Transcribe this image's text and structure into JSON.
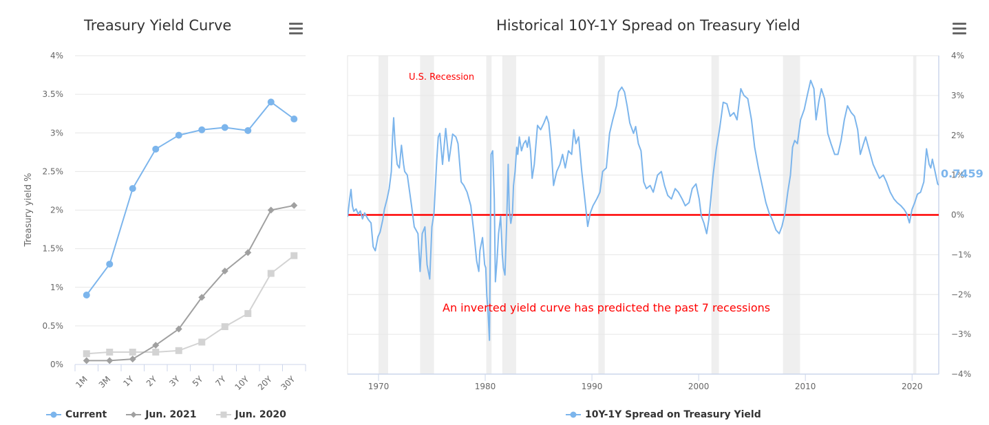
{
  "left_chart": {
    "title": "Treasury Yield Curve",
    "menu_icon": "hamburger-menu-icon",
    "legend": [
      "Current",
      "Jun. 2021",
      "Jun. 2020"
    ]
  },
  "right_chart": {
    "title": "Historical 10Y-1Y Spread on Treasury Yield",
    "menu_icon": "hamburger-menu-icon",
    "legend": [
      "10Y-1Y Spread on Treasury Yield"
    ],
    "recession_label": "U.S. Recession",
    "annotation": "An inverted yield curve has predicted the past 7 recessions",
    "last_value_label": "0.7459"
  },
  "colors": {
    "current": "#7cb5ec",
    "jun2021": "#a0a0a0",
    "jun2020": "#d3d3d3",
    "zero_line": "#ff0000",
    "recession_band": "#efefef",
    "annotation": "#ff0000"
  },
  "chart_data": [
    {
      "type": "line",
      "title": "Treasury Yield Curve",
      "xlabel": "",
      "ylabel": "Treasury yield %",
      "categories": [
        "1M",
        "3M",
        "1Y",
        "2Y",
        "3Y",
        "5Y",
        "7Y",
        "10Y",
        "20Y",
        "30Y"
      ],
      "ylim": [
        0,
        4
      ],
      "yticks": [
        0,
        0.5,
        1,
        1.5,
        2,
        2.5,
        3,
        3.5,
        4
      ],
      "ytick_labels": [
        "0%",
        "0.5%",
        "1%",
        "1.5%",
        "2%",
        "2.5%",
        "3%",
        "3.5%",
        "4%"
      ],
      "grid": true,
      "legend_position": "bottom",
      "series": [
        {
          "name": "Current",
          "marker": "circle",
          "values": [
            0.9,
            1.3,
            2.28,
            2.79,
            2.97,
            3.04,
            3.07,
            3.03,
            3.4,
            3.18
          ]
        },
        {
          "name": "Jun. 2021",
          "marker": "diamond",
          "values": [
            0.05,
            0.05,
            0.07,
            0.25,
            0.46,
            0.87,
            1.21,
            1.45,
            2.0,
            2.06
          ]
        },
        {
          "name": "Jun. 2020",
          "marker": "square",
          "values": [
            0.14,
            0.16,
            0.16,
            0.16,
            0.18,
            0.29,
            0.49,
            0.66,
            1.18,
            1.41
          ]
        }
      ]
    },
    {
      "type": "line",
      "title": "Historical 10Y-1Y Spread on Treasury Yield",
      "xlabel": "",
      "ylabel": "",
      "xlim": [
        1967.1,
        2022.5
      ],
      "xticks": [
        1970,
        1980,
        1990,
        2000,
        2010,
        2020
      ],
      "xtick_labels": [
        "1970",
        "1980",
        "1990",
        "2000",
        "2010",
        "2020"
      ],
      "ylim": [
        -4,
        4
      ],
      "yticks": [
        -4,
        -3,
        -2,
        -1,
        0,
        1,
        2,
        3,
        4
      ],
      "ytick_labels": [
        "-4%",
        "-3%",
        "-2%",
        "-1%",
        "0%",
        "1%",
        "2%",
        "3%",
        "4%"
      ],
      "yaxis_side": "right",
      "grid": true,
      "legend_position": "bottom",
      "reference_line": {
        "y": 0,
        "color": "#ff0000"
      },
      "recessions": [
        [
          1970.0,
          1970.9
        ],
        [
          1973.9,
          1975.2
        ],
        [
          1980.1,
          1980.6
        ],
        [
          1981.6,
          1982.9
        ],
        [
          1990.6,
          1991.2
        ],
        [
          2001.2,
          2001.9
        ],
        [
          2007.9,
          2009.5
        ],
        [
          2020.1,
          2020.4
        ]
      ],
      "annotations": [
        "U.S. Recession",
        "An inverted yield curve has predicted the past 7 recessions"
      ],
      "last_value": 0.7459,
      "series": [
        {
          "name": "10Y-1Y Spread on Treasury Yield",
          "points": [
            [
              1967.1,
              -0.05
            ],
            [
              1967.3,
              0.4
            ],
            [
              1967.42,
              0.64
            ],
            [
              1967.55,
              0.23
            ],
            [
              1967.68,
              0.09
            ],
            [
              1967.9,
              0.15
            ],
            [
              1968.1,
              0.02
            ],
            [
              1968.3,
              0.1
            ],
            [
              1968.5,
              -0.1
            ],
            [
              1968.7,
              0.05
            ],
            [
              1968.9,
              -0.05
            ],
            [
              1969.05,
              -0.12
            ],
            [
              1969.3,
              -0.2
            ],
            [
              1969.5,
              -0.8
            ],
            [
              1969.7,
              -0.9
            ],
            [
              1969.95,
              -0.55
            ],
            [
              1970.15,
              -0.43
            ],
            [
              1970.4,
              -0.12
            ],
            [
              1970.55,
              0.14
            ],
            [
              1970.8,
              0.4
            ],
            [
              1971.0,
              0.66
            ],
            [
              1971.2,
              1.09
            ],
            [
              1971.32,
              1.97
            ],
            [
              1971.42,
              2.44
            ],
            [
              1971.55,
              1.79
            ],
            [
              1971.75,
              1.27
            ],
            [
              1971.95,
              1.18
            ],
            [
              1972.15,
              1.75
            ],
            [
              1972.35,
              1.27
            ],
            [
              1972.45,
              1.09
            ],
            [
              1972.7,
              1.0
            ],
            [
              1973.1,
              0.23
            ],
            [
              1973.35,
              -0.3
            ],
            [
              1973.7,
              -0.47
            ],
            [
              1973.9,
              -1.42
            ],
            [
              1974.1,
              -0.47
            ],
            [
              1974.35,
              -0.3
            ],
            [
              1974.55,
              -1.25
            ],
            [
              1974.8,
              -1.61
            ],
            [
              1975.0,
              -0.3
            ],
            [
              1975.2,
              0.05
            ],
            [
              1975.45,
              1.35
            ],
            [
              1975.6,
              1.96
            ],
            [
              1975.75,
              2.05
            ],
            [
              1976.0,
              1.27
            ],
            [
              1976.3,
              2.17
            ],
            [
              1976.6,
              1.35
            ],
            [
              1976.95,
              2.03
            ],
            [
              1977.25,
              1.96
            ],
            [
              1977.45,
              1.79
            ],
            [
              1977.75,
              0.83
            ],
            [
              1978.0,
              0.74
            ],
            [
              1978.3,
              0.57
            ],
            [
              1978.65,
              0.23
            ],
            [
              1978.95,
              -0.47
            ],
            [
              1979.2,
              -1.16
            ],
            [
              1979.4,
              -1.42
            ],
            [
              1979.5,
              -0.9
            ],
            [
              1979.75,
              -0.57
            ],
            [
              1979.95,
              -1.25
            ],
            [
              1980.05,
              -1.33
            ],
            [
              1980.15,
              -2.03
            ],
            [
              1980.25,
              -2.38
            ],
            [
              1980.4,
              -3.15
            ],
            [
              1980.55,
              1.52
            ],
            [
              1980.7,
              1.61
            ],
            [
              1980.85,
              0.4
            ],
            [
              1980.95,
              -1.68
            ],
            [
              1981.1,
              -1.16
            ],
            [
              1981.25,
              -0.47
            ],
            [
              1981.45,
              -0.03
            ],
            [
              1981.6,
              -0.99
            ],
            [
              1981.7,
              -1.33
            ],
            [
              1981.85,
              -1.51
            ],
            [
              1982.0,
              -0.3
            ],
            [
              1982.15,
              1.27
            ],
            [
              1982.25,
              0.14
            ],
            [
              1982.4,
              -0.21
            ],
            [
              1982.55,
              0.05
            ],
            [
              1982.65,
              0.74
            ],
            [
              1982.8,
              1.09
            ],
            [
              1982.95,
              1.7
            ],
            [
              1983.05,
              1.52
            ],
            [
              1983.2,
              1.96
            ],
            [
              1983.4,
              1.61
            ],
            [
              1983.6,
              1.79
            ],
            [
              1983.8,
              1.87
            ],
            [
              1983.95,
              1.7
            ],
            [
              1984.1,
              1.96
            ],
            [
              1984.25,
              1.61
            ],
            [
              1984.4,
              0.92
            ],
            [
              1984.6,
              1.27
            ],
            [
              1984.9,
              2.25
            ],
            [
              1985.2,
              2.14
            ],
            [
              1985.5,
              2.31
            ],
            [
              1985.75,
              2.48
            ],
            [
              1985.95,
              2.31
            ],
            [
              1986.2,
              1.61
            ],
            [
              1986.4,
              0.74
            ],
            [
              1986.7,
              1.09
            ],
            [
              1987.0,
              1.27
            ],
            [
              1987.25,
              1.52
            ],
            [
              1987.5,
              1.18
            ],
            [
              1987.8,
              1.61
            ],
            [
              1988.1,
              1.52
            ],
            [
              1988.3,
              2.14
            ],
            [
              1988.5,
              1.79
            ],
            [
              1988.75,
              1.96
            ],
            [
              1989.05,
              1.09
            ],
            [
              1989.4,
              0.23
            ],
            [
              1989.6,
              -0.29
            ],
            [
              1989.85,
              0.05
            ],
            [
              1990.1,
              0.23
            ],
            [
              1990.45,
              0.4
            ],
            [
              1990.75,
              0.57
            ],
            [
              1991.0,
              1.09
            ],
            [
              1991.35,
              1.18
            ],
            [
              1991.65,
              2.05
            ],
            [
              1991.95,
              2.39
            ],
            [
              1992.3,
              2.74
            ],
            [
              1992.5,
              3.09
            ],
            [
              1992.8,
              3.21
            ],
            [
              1993.05,
              3.09
            ],
            [
              1993.3,
              2.74
            ],
            [
              1993.55,
              2.31
            ],
            [
              1993.9,
              2.05
            ],
            [
              1994.1,
              2.22
            ],
            [
              1994.35,
              1.79
            ],
            [
              1994.6,
              1.61
            ],
            [
              1994.85,
              0.83
            ],
            [
              1995.1,
              0.66
            ],
            [
              1995.45,
              0.74
            ],
            [
              1995.75,
              0.57
            ],
            [
              1996.15,
              1.0
            ],
            [
              1996.5,
              1.09
            ],
            [
              1996.8,
              0.74
            ],
            [
              1997.1,
              0.49
            ],
            [
              1997.45,
              0.4
            ],
            [
              1997.8,
              0.66
            ],
            [
              1998.1,
              0.57
            ],
            [
              1998.45,
              0.4
            ],
            [
              1998.75,
              0.23
            ],
            [
              1999.1,
              0.31
            ],
            [
              1999.4,
              0.66
            ],
            [
              1999.75,
              0.78
            ],
            [
              2000.05,
              0.4
            ],
            [
              2000.25,
              -0.03
            ],
            [
              2000.5,
              -0.21
            ],
            [
              2000.75,
              -0.47
            ],
            [
              2000.95,
              -0.12
            ],
            [
              2001.2,
              0.57
            ],
            [
              2001.35,
              1.0
            ],
            [
              2001.65,
              1.65
            ],
            [
              2001.95,
              2.14
            ],
            [
              2002.3,
              2.83
            ],
            [
              2002.65,
              2.79
            ],
            [
              2002.95,
              2.48
            ],
            [
              2003.3,
              2.57
            ],
            [
              2003.6,
              2.39
            ],
            [
              2003.95,
              3.17
            ],
            [
              2004.25,
              3.0
            ],
            [
              2004.6,
              2.92
            ],
            [
              2004.95,
              2.39
            ],
            [
              2005.25,
              1.7
            ],
            [
              2005.6,
              1.18
            ],
            [
              2005.95,
              0.74
            ],
            [
              2006.3,
              0.31
            ],
            [
              2006.6,
              0.05
            ],
            [
              2006.9,
              -0.12
            ],
            [
              2007.25,
              -0.38
            ],
            [
              2007.55,
              -0.47
            ],
            [
              2007.8,
              -0.29
            ],
            [
              2008.1,
              0.05
            ],
            [
              2008.35,
              0.57
            ],
            [
              2008.6,
              1.0
            ],
            [
              2008.8,
              1.7
            ],
            [
              2009.0,
              1.87
            ],
            [
              2009.25,
              1.79
            ],
            [
              2009.55,
              2.39
            ],
            [
              2009.9,
              2.65
            ],
            [
              2010.2,
              3.03
            ],
            [
              2010.5,
              3.38
            ],
            [
              2010.8,
              3.17
            ],
            [
              2011.0,
              2.39
            ],
            [
              2011.25,
              2.83
            ],
            [
              2011.5,
              3.17
            ],
            [
              2011.8,
              2.92
            ],
            [
              2012.1,
              2.05
            ],
            [
              2012.4,
              1.79
            ],
            [
              2012.75,
              1.52
            ],
            [
              2013.05,
              1.52
            ],
            [
              2013.35,
              1.87
            ],
            [
              2013.65,
              2.39
            ],
            [
              2013.95,
              2.74
            ],
            [
              2014.3,
              2.57
            ],
            [
              2014.6,
              2.48
            ],
            [
              2014.9,
              2.14
            ],
            [
              2015.15,
              1.52
            ],
            [
              2015.45,
              1.79
            ],
            [
              2015.65,
              1.96
            ],
            [
              2016.0,
              1.61
            ],
            [
              2016.35,
              1.27
            ],
            [
              2016.65,
              1.09
            ],
            [
              2016.95,
              0.92
            ],
            [
              2017.3,
              1.0
            ],
            [
              2017.6,
              0.83
            ],
            [
              2017.95,
              0.57
            ],
            [
              2018.3,
              0.4
            ],
            [
              2018.6,
              0.31
            ],
            [
              2018.95,
              0.23
            ],
            [
              2019.25,
              0.14
            ],
            [
              2019.5,
              0.03
            ],
            [
              2019.75,
              -0.2
            ],
            [
              2020.0,
              0.14
            ],
            [
              2020.25,
              0.31
            ],
            [
              2020.5,
              0.52
            ],
            [
              2020.8,
              0.57
            ],
            [
              2021.1,
              0.83
            ],
            [
              2021.35,
              1.66
            ],
            [
              2021.6,
              1.27
            ],
            [
              2021.75,
              1.18
            ],
            [
              2021.9,
              1.4
            ],
            [
              2022.15,
              1.09
            ],
            [
              2022.4,
              0.78
            ],
            [
              2022.5,
              0.75
            ]
          ]
        }
      ]
    }
  ]
}
